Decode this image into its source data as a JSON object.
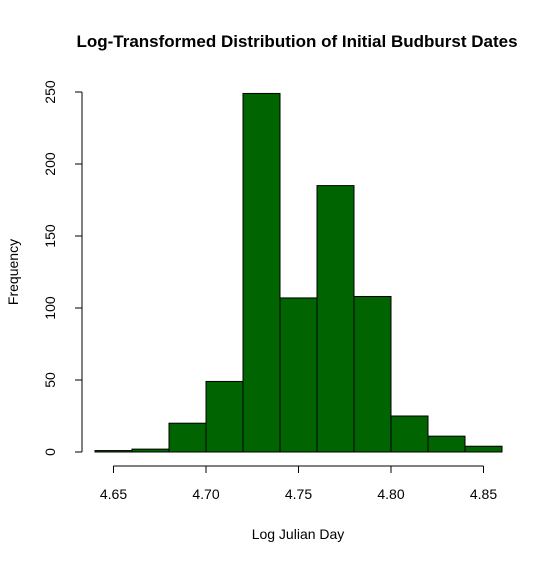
{
  "chart_data": {
    "type": "bar",
    "subtype": "histogram",
    "title": "Log-Transformed Distribution of Initial Budburst Dates",
    "xlabel": "Log Julian Day",
    "ylabel": "Frequency",
    "bar_color": "#006400",
    "bins": [
      {
        "x0": 4.64,
        "x1": 4.66,
        "count": 1
      },
      {
        "x0": 4.66,
        "x1": 4.68,
        "count": 2
      },
      {
        "x0": 4.68,
        "x1": 4.7,
        "count": 20
      },
      {
        "x0": 4.7,
        "x1": 4.72,
        "count": 49
      },
      {
        "x0": 4.72,
        "x1": 4.74,
        "count": 249
      },
      {
        "x0": 4.74,
        "x1": 4.76,
        "count": 107
      },
      {
        "x0": 4.76,
        "x1": 4.78,
        "count": 185
      },
      {
        "x0": 4.78,
        "x1": 4.8,
        "count": 108
      },
      {
        "x0": 4.8,
        "x1": 4.82,
        "count": 25
      },
      {
        "x0": 4.82,
        "x1": 4.84,
        "count": 11
      },
      {
        "x0": 4.84,
        "x1": 4.86,
        "count": 4
      }
    ],
    "xlim": [
      4.64,
      4.86
    ],
    "ylim": [
      0,
      250
    ],
    "x_ticks": [
      4.65,
      4.7,
      4.75,
      4.8,
      4.85
    ],
    "x_tick_labels": [
      "4.65",
      "4.70",
      "4.75",
      "4.80",
      "4.85"
    ],
    "y_ticks": [
      0,
      50,
      100,
      150,
      200,
      250
    ],
    "y_tick_labels": [
      "0",
      "50",
      "100",
      "150",
      "200",
      "250"
    ],
    "grid": false,
    "legend": "none"
  }
}
